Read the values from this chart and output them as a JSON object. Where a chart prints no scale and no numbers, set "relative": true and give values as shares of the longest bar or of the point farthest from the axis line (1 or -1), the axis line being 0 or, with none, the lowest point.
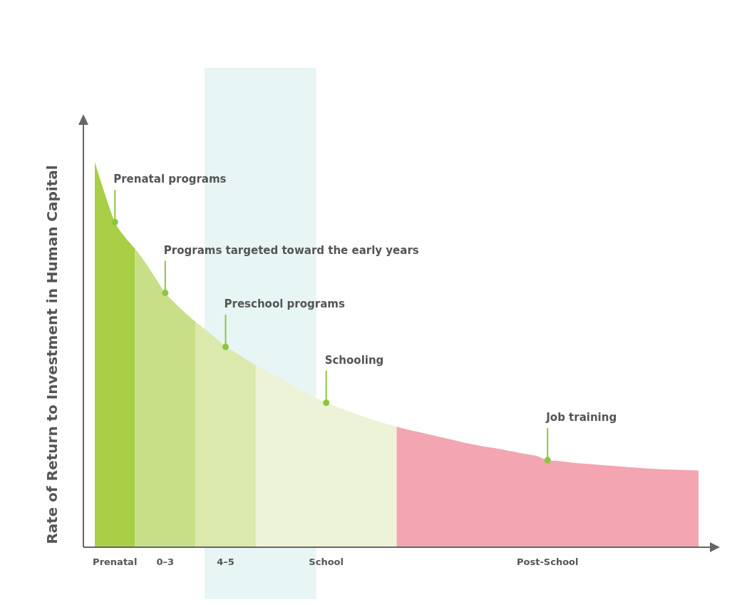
{
  "chart_data": {
    "type": "area",
    "relative": true,
    "ylabel": "Rate of Return to Investment in Human Capital",
    "categories": [
      null,
      null,
      "Prenatal",
      null,
      null,
      null,
      null,
      "0–3",
      null,
      null,
      null,
      null,
      null,
      "4–5",
      null,
      null,
      null,
      null,
      null,
      null,
      null,
      null,
      null,
      "School",
      null,
      null,
      null,
      null,
      null,
      null,
      null,
      null,
      null,
      null,
      null,
      null,
      null,
      null,
      null,
      null,
      null,
      null,
      null,
      null,
      null,
      "Post-School",
      null,
      null,
      null,
      null,
      null,
      null,
      null,
      null,
      null,
      null,
      null,
      null,
      null,
      null,
      null
    ],
    "series": [
      {
        "color": "#a8cf45",
        "values": [
          1,
          0.917,
          0.844,
          0.805,
          0.775,
          null,
          null,
          null,
          null,
          null,
          null,
          null,
          null,
          null,
          null,
          null,
          null,
          null,
          null,
          null,
          null,
          null,
          null,
          null,
          null,
          null,
          null,
          null,
          null,
          null,
          null,
          null,
          null,
          null,
          null,
          null,
          null,
          null,
          null,
          null,
          null,
          null,
          null,
          null,
          null,
          null,
          null,
          null,
          null,
          null,
          null,
          null,
          null,
          null,
          null,
          null,
          null,
          null,
          null,
          null,
          null
        ]
      },
      {
        "color": "#c8df87",
        "values": [
          null,
          null,
          null,
          null,
          0.775,
          0.74,
          0.7,
          0.66,
          0.633,
          0.608,
          0.585,
          null,
          null,
          null,
          null,
          null,
          null,
          null,
          null,
          null,
          null,
          null,
          null,
          null,
          null,
          null,
          null,
          null,
          null,
          null,
          null,
          null,
          null,
          null,
          null,
          null,
          null,
          null,
          null,
          null,
          null,
          null,
          null,
          null,
          null,
          null,
          null,
          null,
          null,
          null,
          null,
          null,
          null,
          null,
          null,
          null,
          null,
          null,
          null,
          null,
          null
        ]
      },
      {
        "color": "#dbe9ad",
        "values": [
          null,
          null,
          null,
          null,
          null,
          null,
          null,
          null,
          null,
          null,
          0.585,
          0.565,
          0.543,
          0.52,
          0.505,
          0.488,
          0.472,
          null,
          null,
          null,
          null,
          null,
          null,
          null,
          null,
          null,
          null,
          null,
          null,
          null,
          null,
          null,
          null,
          null,
          null,
          null,
          null,
          null,
          null,
          null,
          null,
          null,
          null,
          null,
          null,
          null,
          null,
          null,
          null,
          null,
          null,
          null,
          null,
          null,
          null,
          null,
          null,
          null,
          null,
          null,
          null
        ]
      },
      {
        "color": "#ecf3d6",
        "values": [
          null,
          null,
          null,
          null,
          null,
          null,
          null,
          null,
          null,
          null,
          null,
          null,
          null,
          null,
          null,
          null,
          0.472,
          0.458,
          0.444,
          0.43,
          0.415,
          0.4,
          0.387,
          0.375,
          0.365,
          0.355,
          0.345,
          0.336,
          0.328,
          0.32,
          0.313,
          null,
          null,
          null,
          null,
          null,
          null,
          null,
          null,
          null,
          null,
          null,
          null,
          null,
          null,
          null,
          null,
          null,
          null,
          null,
          null,
          null,
          null,
          null,
          null,
          null,
          null,
          null,
          null,
          null,
          null
        ]
      },
      {
        "color": "#f3a5b1",
        "values": [
          null,
          null,
          null,
          null,
          null,
          null,
          null,
          null,
          null,
          null,
          null,
          null,
          null,
          null,
          null,
          null,
          null,
          null,
          null,
          null,
          null,
          null,
          null,
          null,
          null,
          null,
          null,
          null,
          null,
          null,
          0.313,
          0.306,
          0.3,
          0.294,
          0.288,
          0.282,
          0.276,
          0.27,
          0.265,
          0.26,
          0.256,
          0.251,
          0.246,
          0.241,
          0.236,
          0.226,
          0.224,
          0.221,
          0.218,
          0.216,
          0.214,
          0.212,
          0.21,
          0.208,
          0.206,
          0.204,
          0.203,
          0.202,
          0.201,
          0.2,
          0.199
        ]
      }
    ],
    "annotations": [
      {
        "text": "Prenatal programs",
        "x": "Prenatal",
        "y": 0.844
      },
      {
        "text": "Programs targeted toward the early years",
        "x": "0–3",
        "y": 0.66
      },
      {
        "text": "Preschool programs",
        "x": "4–5",
        "y": 0.52
      },
      {
        "text": "Schooling",
        "x": "School",
        "y": 0.375
      },
      {
        "text": "Job training",
        "x": "Post-School",
        "y": 0.226
      }
    ]
  }
}
